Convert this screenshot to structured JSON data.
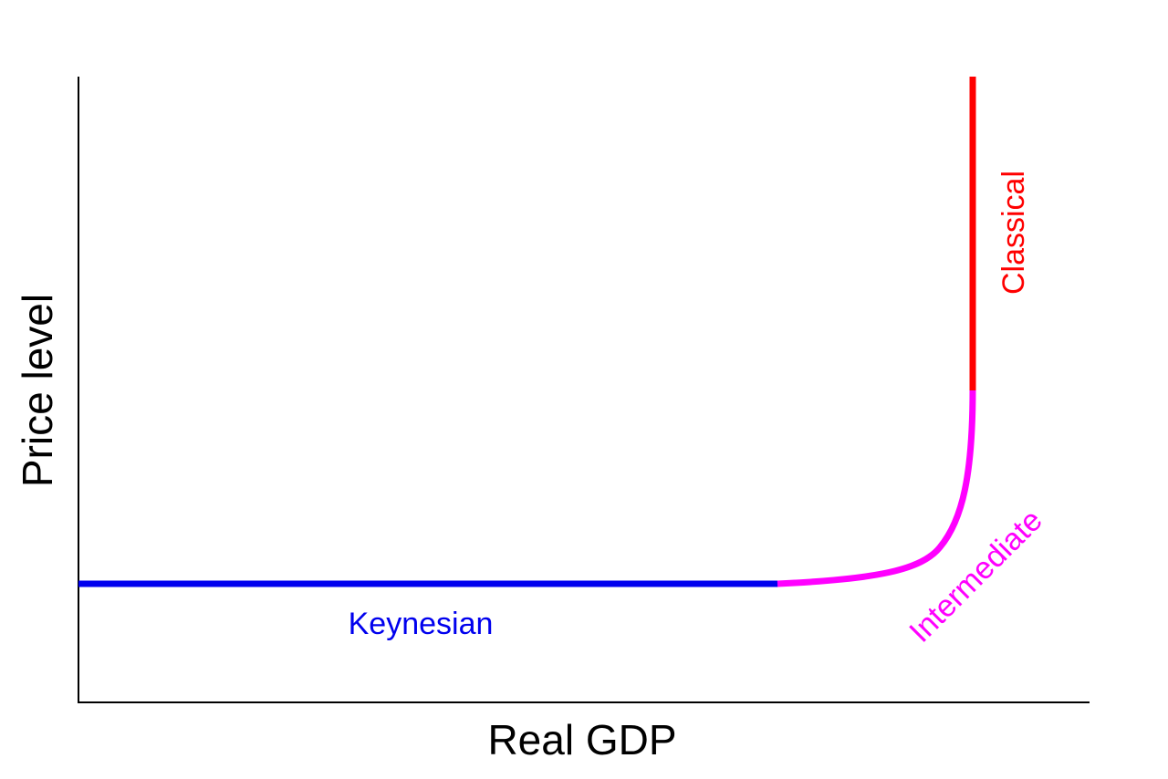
{
  "axes": {
    "x_label": "Real GDP",
    "y_label": "Price level"
  },
  "segments": [
    {
      "label": "Keynesian"
    },
    {
      "label": "Intermediate"
    },
    {
      "label": "Classical"
    }
  ]
}
